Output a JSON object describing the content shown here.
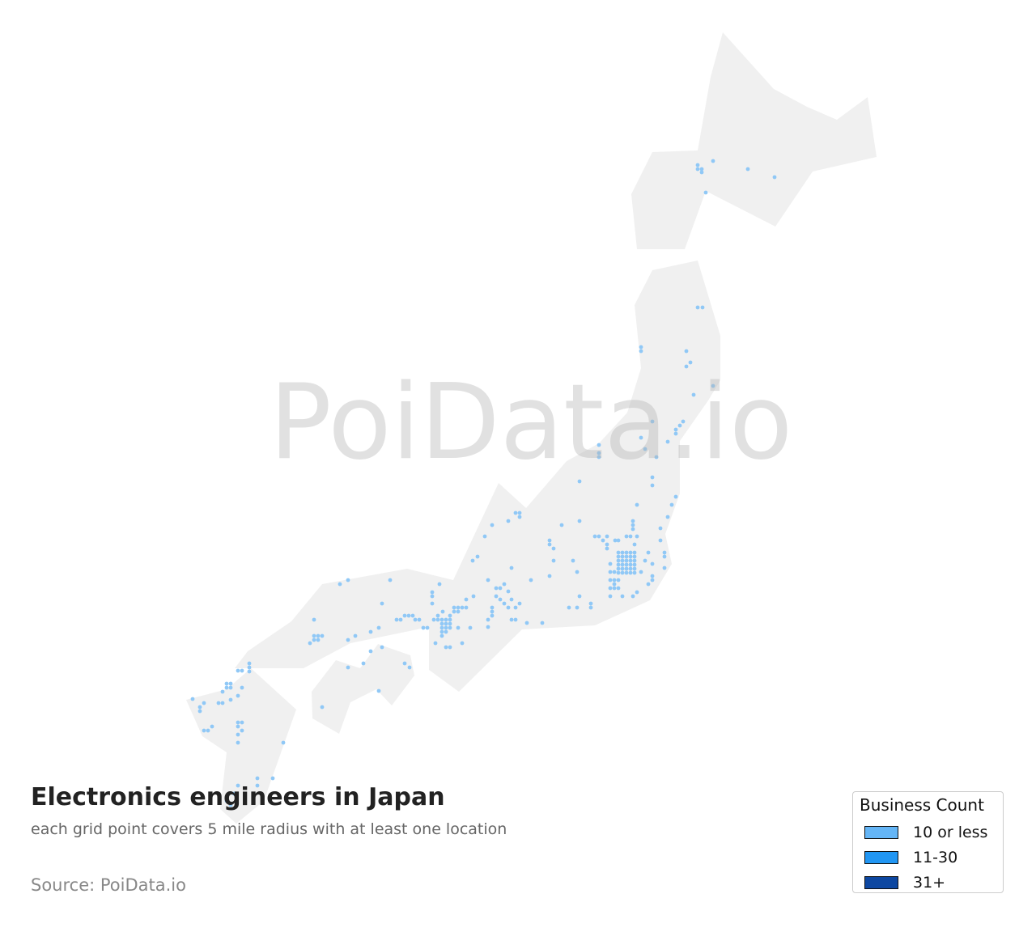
{
  "map": {
    "title": "Electronics engineers in Japan",
    "subtitle": "each grid point covers 5 mile radius with at least one location",
    "source": "Source: PoiData.io",
    "watermark": "PoiData.io",
    "land_color": "#f0f0f0",
    "point_color": "#90c8f6",
    "legend": {
      "title": "Business Count",
      "items": [
        {
          "label": "10 or less",
          "color": "#64b5f6"
        },
        {
          "label": "11-30",
          "color": "#2196f3"
        },
        {
          "label": "31+",
          "color": "#0d47a1"
        }
      ]
    }
  }
}
